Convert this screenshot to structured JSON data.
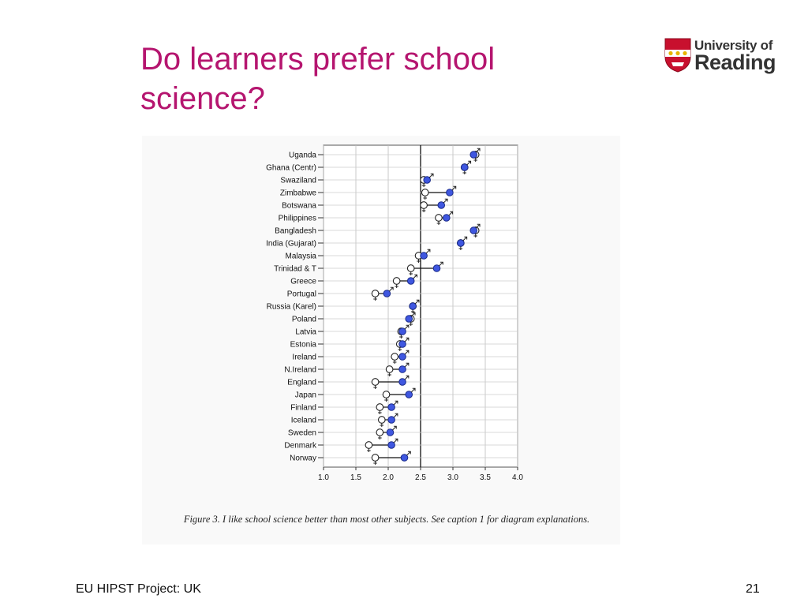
{
  "slide": {
    "title": "Do learners prefer school science?",
    "footer": "EU HIPST Project: UK",
    "page_number": "21"
  },
  "logo": {
    "line1": "University of",
    "line2": "Reading"
  },
  "figure": {
    "caption": "Figure 3. I like school science better than most other subjects. See caption 1 for diagram explanations."
  },
  "colors": {
    "title": "#b5156f",
    "male_marker": "#3f57e0",
    "female_marker": "#ffffff"
  },
  "chart_data": {
    "type": "scatter",
    "title": "",
    "xlabel": "",
    "ylabel": "",
    "xlim": [
      1.0,
      4.0
    ],
    "x_ticks": [
      "1.0",
      "1.5",
      "2.0",
      "2.5",
      "3.0",
      "3.5",
      "4.0"
    ],
    "reference_line": 2.5,
    "grid": true,
    "categories": [
      "Uganda",
      "Ghana (Centr)",
      "Swaziland",
      "Zimbabwe",
      "Botswana",
      "Philippines",
      "Bangladesh",
      "India (Gujarat)",
      "Malaysia",
      "Trinidad & T",
      "Greece",
      "Portugal",
      "Russia (Karel)",
      "Poland",
      "Latvia",
      "Estonia",
      "Ireland",
      "N.Ireland",
      "England",
      "Japan",
      "Finland",
      "Iceland",
      "Sweden",
      "Denmark",
      "Norway"
    ],
    "series": [
      {
        "marker": "♂",
        "values": [
          3.32,
          3.18,
          2.6,
          2.95,
          2.82,
          2.9,
          3.32,
          3.12,
          2.55,
          2.75,
          2.35,
          1.98,
          2.38,
          2.32,
          2.22,
          2.22,
          2.22,
          2.22,
          2.22,
          2.32,
          2.05,
          2.05,
          2.03,
          2.05,
          2.25
        ]
      },
      {
        "marker": "♀",
        "values": [
          3.35,
          3.18,
          2.55,
          2.57,
          2.55,
          2.78,
          3.35,
          3.12,
          2.47,
          2.35,
          2.13,
          1.8,
          2.38,
          2.35,
          2.2,
          2.18,
          2.1,
          2.02,
          1.8,
          1.97,
          1.87,
          1.9,
          1.87,
          1.7,
          1.8
        ]
      }
    ]
  }
}
